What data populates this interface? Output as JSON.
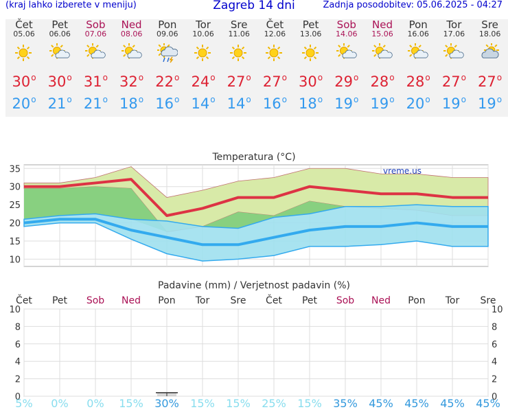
{
  "header": {
    "hint": "(kraj lahko izberete v meniju)",
    "title": "Zagreb 14 dni",
    "updated": "Zadnja posodobitev: 05.06.2025 - 04:27"
  },
  "days": [
    {
      "name": "Čet",
      "date": "05.06",
      "weekend": false,
      "icon": "sun-icon",
      "max": 30,
      "min": 20
    },
    {
      "name": "Pet",
      "date": "06.06",
      "weekend": false,
      "icon": "sun-cloud-icon",
      "max": 30,
      "min": 21
    },
    {
      "name": "Sob",
      "date": "07.06",
      "weekend": true,
      "icon": "sun-cloud-icon",
      "max": 31,
      "min": 21
    },
    {
      "name": "Ned",
      "date": "08.06",
      "weekend": true,
      "icon": "sun-cloud-icon",
      "max": 32,
      "min": 18
    },
    {
      "name": "Pon",
      "date": "09.06",
      "weekend": false,
      "icon": "sun-storm-icon",
      "max": 22,
      "min": 16
    },
    {
      "name": "Tor",
      "date": "10.06",
      "weekend": false,
      "icon": "sun-icon",
      "max": 24,
      "min": 14
    },
    {
      "name": "Sre",
      "date": "11.06",
      "weekend": false,
      "icon": "sun-icon",
      "max": 27,
      "min": 14
    },
    {
      "name": "Čet",
      "date": "12.06",
      "weekend": false,
      "icon": "sun-icon",
      "max": 27,
      "min": 16
    },
    {
      "name": "Pet",
      "date": "13.06",
      "weekend": false,
      "icon": "sun-icon",
      "max": 30,
      "min": 18
    },
    {
      "name": "Sob",
      "date": "14.06",
      "weekend": true,
      "icon": "sun-cloud-icon",
      "max": 29,
      "min": 19
    },
    {
      "name": "Ned",
      "date": "15.06",
      "weekend": true,
      "icon": "sun-cloud-icon",
      "max": 28,
      "min": 19
    },
    {
      "name": "Pon",
      "date": "16.06",
      "weekend": false,
      "icon": "sun-cloud-icon",
      "max": 28,
      "min": 20
    },
    {
      "name": "Tor",
      "date": "17.06",
      "weekend": false,
      "icon": "sun-cloud-icon",
      "max": 27,
      "min": 19
    },
    {
      "name": "Sre",
      "date": "18.06",
      "weekend": false,
      "icon": "cloud-sun-icon",
      "max": 27,
      "min": 19
    }
  ],
  "colors": {
    "weekend": "#aa1155",
    "max_line": "#dd3344",
    "min_line": "#33aaee",
    "max_band": "#d8eaa8",
    "min_band": "#9fe0ee",
    "overlap_band": "#88d080",
    "precip_text_low": "#88ddee",
    "precip_text_high": "#3399dd"
  },
  "chart_data": [
    {
      "type": "line",
      "title": "Temperatura (°C)",
      "watermark": "vreme.us",
      "categories": [
        "05.06",
        "06.06",
        "07.06",
        "08.06",
        "09.06",
        "10.06",
        "11.06",
        "12.06",
        "13.06",
        "14.06",
        "15.06",
        "16.06",
        "17.06",
        "18.06"
      ],
      "ylim": [
        8,
        36
      ],
      "yticks": [
        10,
        15,
        20,
        25,
        30,
        35
      ],
      "grid": true,
      "series": [
        {
          "key": "max",
          "values": [
            30,
            30,
            31,
            32,
            22,
            24,
            27,
            27,
            30,
            29,
            28,
            28,
            27,
            27
          ]
        },
        {
          "key": "min",
          "values": [
            20,
            21,
            21,
            18,
            16,
            14,
            14,
            16,
            18,
            19,
            19,
            20,
            19,
            19
          ]
        }
      ],
      "bands": [
        {
          "key": "max_range",
          "upper": [
            31,
            31,
            32.5,
            35.5,
            27,
            29,
            31.5,
            32.5,
            35,
            35,
            33.5,
            33.5,
            32.5,
            32.5
          ],
          "lower": [
            29.5,
            29.5,
            30,
            29.5,
            17.5,
            19,
            23,
            22,
            26,
            24.5,
            24,
            23.5,
            22,
            22
          ]
        },
        {
          "key": "min_range",
          "upper": [
            21,
            22,
            22.5,
            21,
            20.5,
            19,
            18.5,
            21.5,
            22.5,
            24.5,
            24.5,
            25,
            24.5,
            24.5
          ],
          "lower": [
            19,
            20,
            20,
            15.5,
            11.5,
            9.5,
            10,
            11,
            13.5,
            13.5,
            14,
            15,
            13.5,
            13.5
          ]
        }
      ]
    },
    {
      "type": "bar",
      "title": "Padavine (mm) / Verjetnost padavin (%)",
      "categories": [
        "Čet",
        "Pet",
        "Sob",
        "Ned",
        "Pon",
        "Tor",
        "Sre",
        "Čet",
        "Pet",
        "Sob",
        "Ned",
        "Pon",
        "Tor",
        "Sre"
      ],
      "weekend": [
        false,
        false,
        true,
        true,
        false,
        false,
        false,
        false,
        false,
        true,
        true,
        false,
        false,
        false
      ],
      "ylim": [
        0,
        10
      ],
      "yticks": [
        0,
        2,
        4,
        6,
        8,
        10
      ],
      "precip_mm": [
        0,
        0,
        0,
        0,
        0.4,
        0,
        0,
        0,
        0,
        0,
        0,
        0,
        0,
        0
      ],
      "probability": [
        "5%",
        "0%",
        "0%",
        "15%",
        "30%",
        "15%",
        "15%",
        "25%",
        "15%",
        "35%",
        "45%",
        "45%",
        "45%",
        "45%"
      ]
    }
  ]
}
